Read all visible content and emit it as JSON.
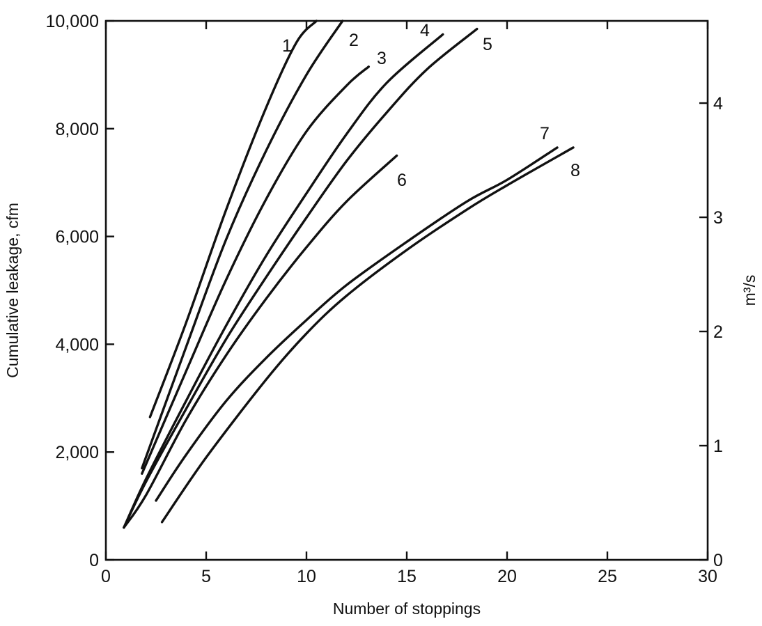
{
  "chart_data": {
    "type": "line",
    "title": "",
    "xlabel": "Number of stoppings",
    "ylabel": "Cumulative leakage, cfm",
    "ylabel_right": "m³/s",
    "xlim": [
      0,
      30
    ],
    "ylim": [
      0,
      10000
    ],
    "ylim_right": [
      0,
      4.72
    ],
    "grid": false,
    "x_ticks": [
      0,
      5,
      10,
      15,
      20,
      25,
      30
    ],
    "x_tick_labels": [
      "0",
      "5",
      "10",
      "15",
      "20",
      "25",
      "30"
    ],
    "y_ticks": [
      0,
      2000,
      4000,
      6000,
      8000,
      10000
    ],
    "y_tick_labels": [
      "0",
      "2,000",
      "4,000",
      "6,000",
      "8,000",
      "10,000"
    ],
    "y_right_ticks": [
      0,
      1,
      2,
      3,
      4
    ],
    "y_right_tick_labels": [
      "0",
      "1",
      "2",
      "3",
      "4"
    ],
    "series": [
      {
        "name": "1",
        "x": [
          2.2,
          4,
          6,
          8,
          9.5,
          10.5
        ],
        "y": [
          2650,
          4400,
          6500,
          8400,
          9600,
          10000
        ]
      },
      {
        "name": "2",
        "x": [
          1.8,
          4,
          6,
          8,
          10,
          11.8
        ],
        "y": [
          1700,
          3950,
          5950,
          7600,
          9000,
          10000
        ]
      },
      {
        "name": "3",
        "x": [
          1.8,
          4,
          6,
          8,
          10,
          12,
          13.1
        ],
        "y": [
          1600,
          3500,
          5200,
          6700,
          7950,
          8800,
          9150
        ]
      },
      {
        "name": "4",
        "x": [
          0.9,
          2,
          4,
          6,
          8,
          10,
          12,
          14,
          16.8
        ],
        "y": [
          600,
          1500,
          2950,
          4350,
          5650,
          6800,
          7900,
          8850,
          9750
        ]
      },
      {
        "name": "5",
        "x": [
          0.9,
          2,
          4,
          6,
          8,
          10,
          12,
          14,
          16,
          18.5
        ],
        "y": [
          600,
          1450,
          2800,
          4100,
          5250,
          6350,
          7400,
          8300,
          9100,
          9850
        ]
      },
      {
        "name": "6",
        "x": [
          0.9,
          2,
          4,
          6,
          8,
          10,
          12,
          14.5
        ],
        "y": [
          600,
          1200,
          2600,
          3800,
          4850,
          5800,
          6650,
          7500
        ]
      },
      {
        "name": "7",
        "x": [
          2.5,
          4,
          6,
          8,
          10,
          12,
          15,
          18,
          20,
          22.5
        ],
        "y": [
          1100,
          1950,
          2950,
          3750,
          4450,
          5100,
          5900,
          6650,
          7050,
          7650
        ]
      },
      {
        "name": "8",
        "x": [
          2.8,
          5,
          8,
          10,
          12,
          15,
          18,
          20,
          23.3
        ],
        "y": [
          700,
          1900,
          3350,
          4200,
          4900,
          5750,
          6500,
          6950,
          7650
        ]
      }
    ],
    "curve_labels": [
      "1",
      "2",
      "3",
      "4",
      "5",
      "6",
      "7",
      "8"
    ]
  }
}
